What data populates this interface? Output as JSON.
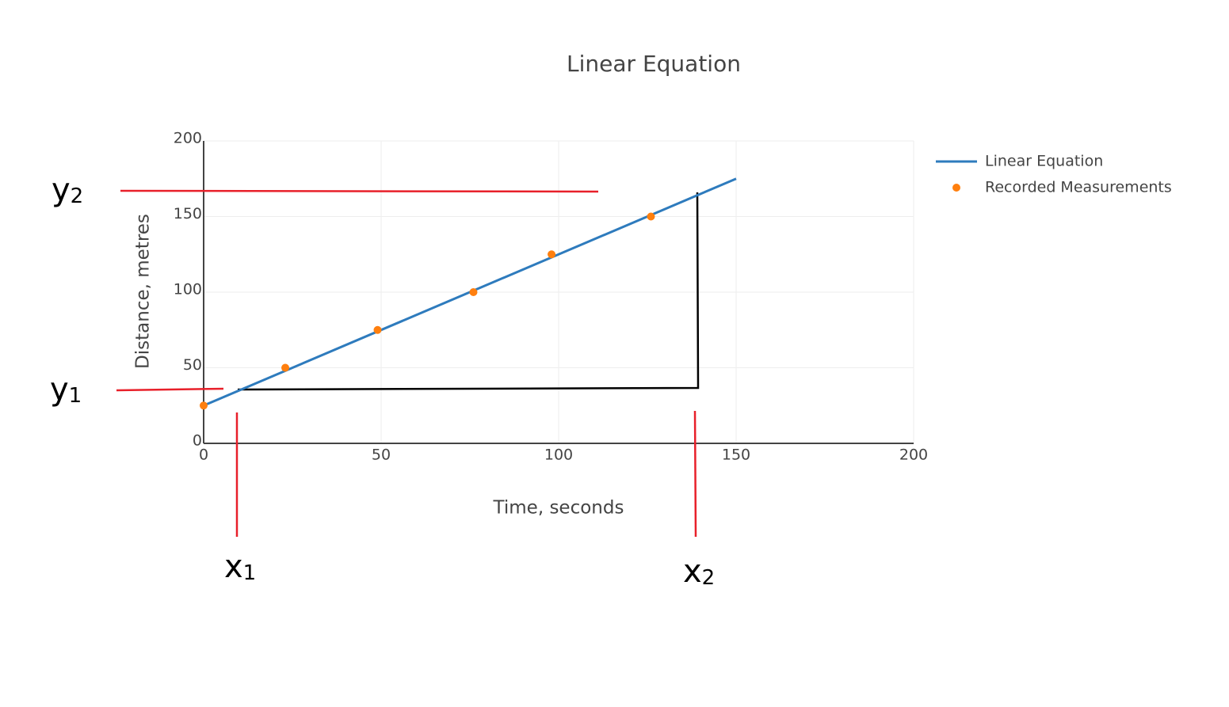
{
  "chart_data": {
    "type": "line-scatter",
    "title": "Linear Equation",
    "x_label": "Time, seconds",
    "y_label": "Distance, metres",
    "xlim": [
      0,
      200
    ],
    "xticks": [
      0,
      50,
      100,
      150,
      200
    ],
    "ylim": [
      0,
      200
    ],
    "yticks": [
      0,
      50,
      100,
      150,
      200
    ],
    "grid": true,
    "legend": "top-right",
    "series": [
      {
        "name": "Linear Equation",
        "type": "line",
        "color": "#2e7bbd",
        "x": [
          0,
          150
        ],
        "values": [
          25,
          175
        ]
      },
      {
        "name": "Recorded Measurements",
        "type": "scatter",
        "color": "#ff7f0e",
        "x": [
          0,
          23,
          49,
          76,
          98,
          126
        ],
        "values": [
          25,
          50,
          75,
          100,
          125,
          150
        ]
      }
    ],
    "annotations": [
      {
        "text": "y",
        "subscript": "2"
      },
      {
        "text": "y",
        "subscript": "1"
      },
      {
        "text": "x",
        "subscript": "1"
      },
      {
        "text": "x",
        "subscript": "2"
      }
    ]
  }
}
